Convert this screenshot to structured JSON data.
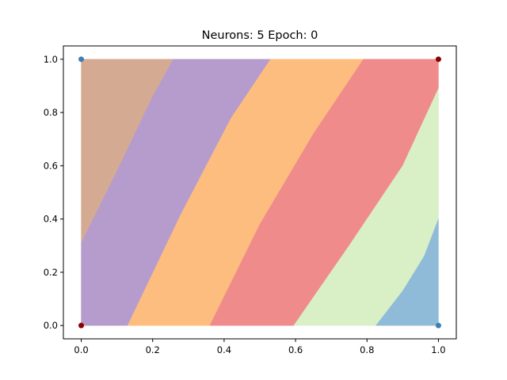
{
  "chart_data": {
    "type": "contour",
    "title": "Neurons: 5 Epoch: 0",
    "xlabel": "",
    "ylabel": "",
    "xlim": [
      -0.05,
      1.05
    ],
    "ylim": [
      -0.05,
      1.05
    ],
    "xticks": [
      0.0,
      0.2,
      0.4,
      0.6,
      0.8,
      1.0
    ],
    "yticks": [
      0.0,
      0.2,
      0.4,
      0.6,
      0.8,
      1.0
    ],
    "xtick_labels": [
      "0.0",
      "0.2",
      "0.4",
      "0.6",
      "0.8",
      "1.0"
    ],
    "ytick_labels": [
      "0.0",
      "0.2",
      "0.4",
      "0.6",
      "0.8",
      "1.0"
    ],
    "grid": false,
    "regions_colors": [
      "#d5aa93",
      "#b59ccc",
      "#fdbd7f",
      "#f08b8b",
      "#d9efc6",
      "#8fbbd9"
    ],
    "boundaries": [
      [
        [
          0.0,
          0.31
        ],
        [
          0.1,
          0.58
        ],
        [
          0.2,
          0.86
        ],
        [
          0.258,
          1.0
        ]
      ],
      [
        [
          0.13,
          0.0
        ],
        [
          0.28,
          0.42
        ],
        [
          0.42,
          0.78
        ],
        [
          0.53,
          1.0
        ]
      ],
      [
        [
          0.36,
          0.0
        ],
        [
          0.5,
          0.38
        ],
        [
          0.65,
          0.72
        ],
        [
          0.79,
          1.0
        ]
      ],
      [
        [
          0.595,
          0.0
        ],
        [
          0.75,
          0.3
        ],
        [
          0.9,
          0.6
        ],
        [
          1.0,
          0.89
        ]
      ],
      [
        [
          0.825,
          0.0
        ],
        [
          0.9,
          0.13
        ],
        [
          0.96,
          0.26
        ],
        [
          1.0,
          0.4
        ]
      ]
    ],
    "points": [
      {
        "x": 0,
        "y": 1,
        "color": "#3b7fb6"
      },
      {
        "x": 1,
        "y": 1,
        "color": "#8b0000"
      },
      {
        "x": 0,
        "y": 0,
        "color": "#8b0000"
      },
      {
        "x": 1,
        "y": 0,
        "color": "#3b7fb6"
      }
    ]
  }
}
